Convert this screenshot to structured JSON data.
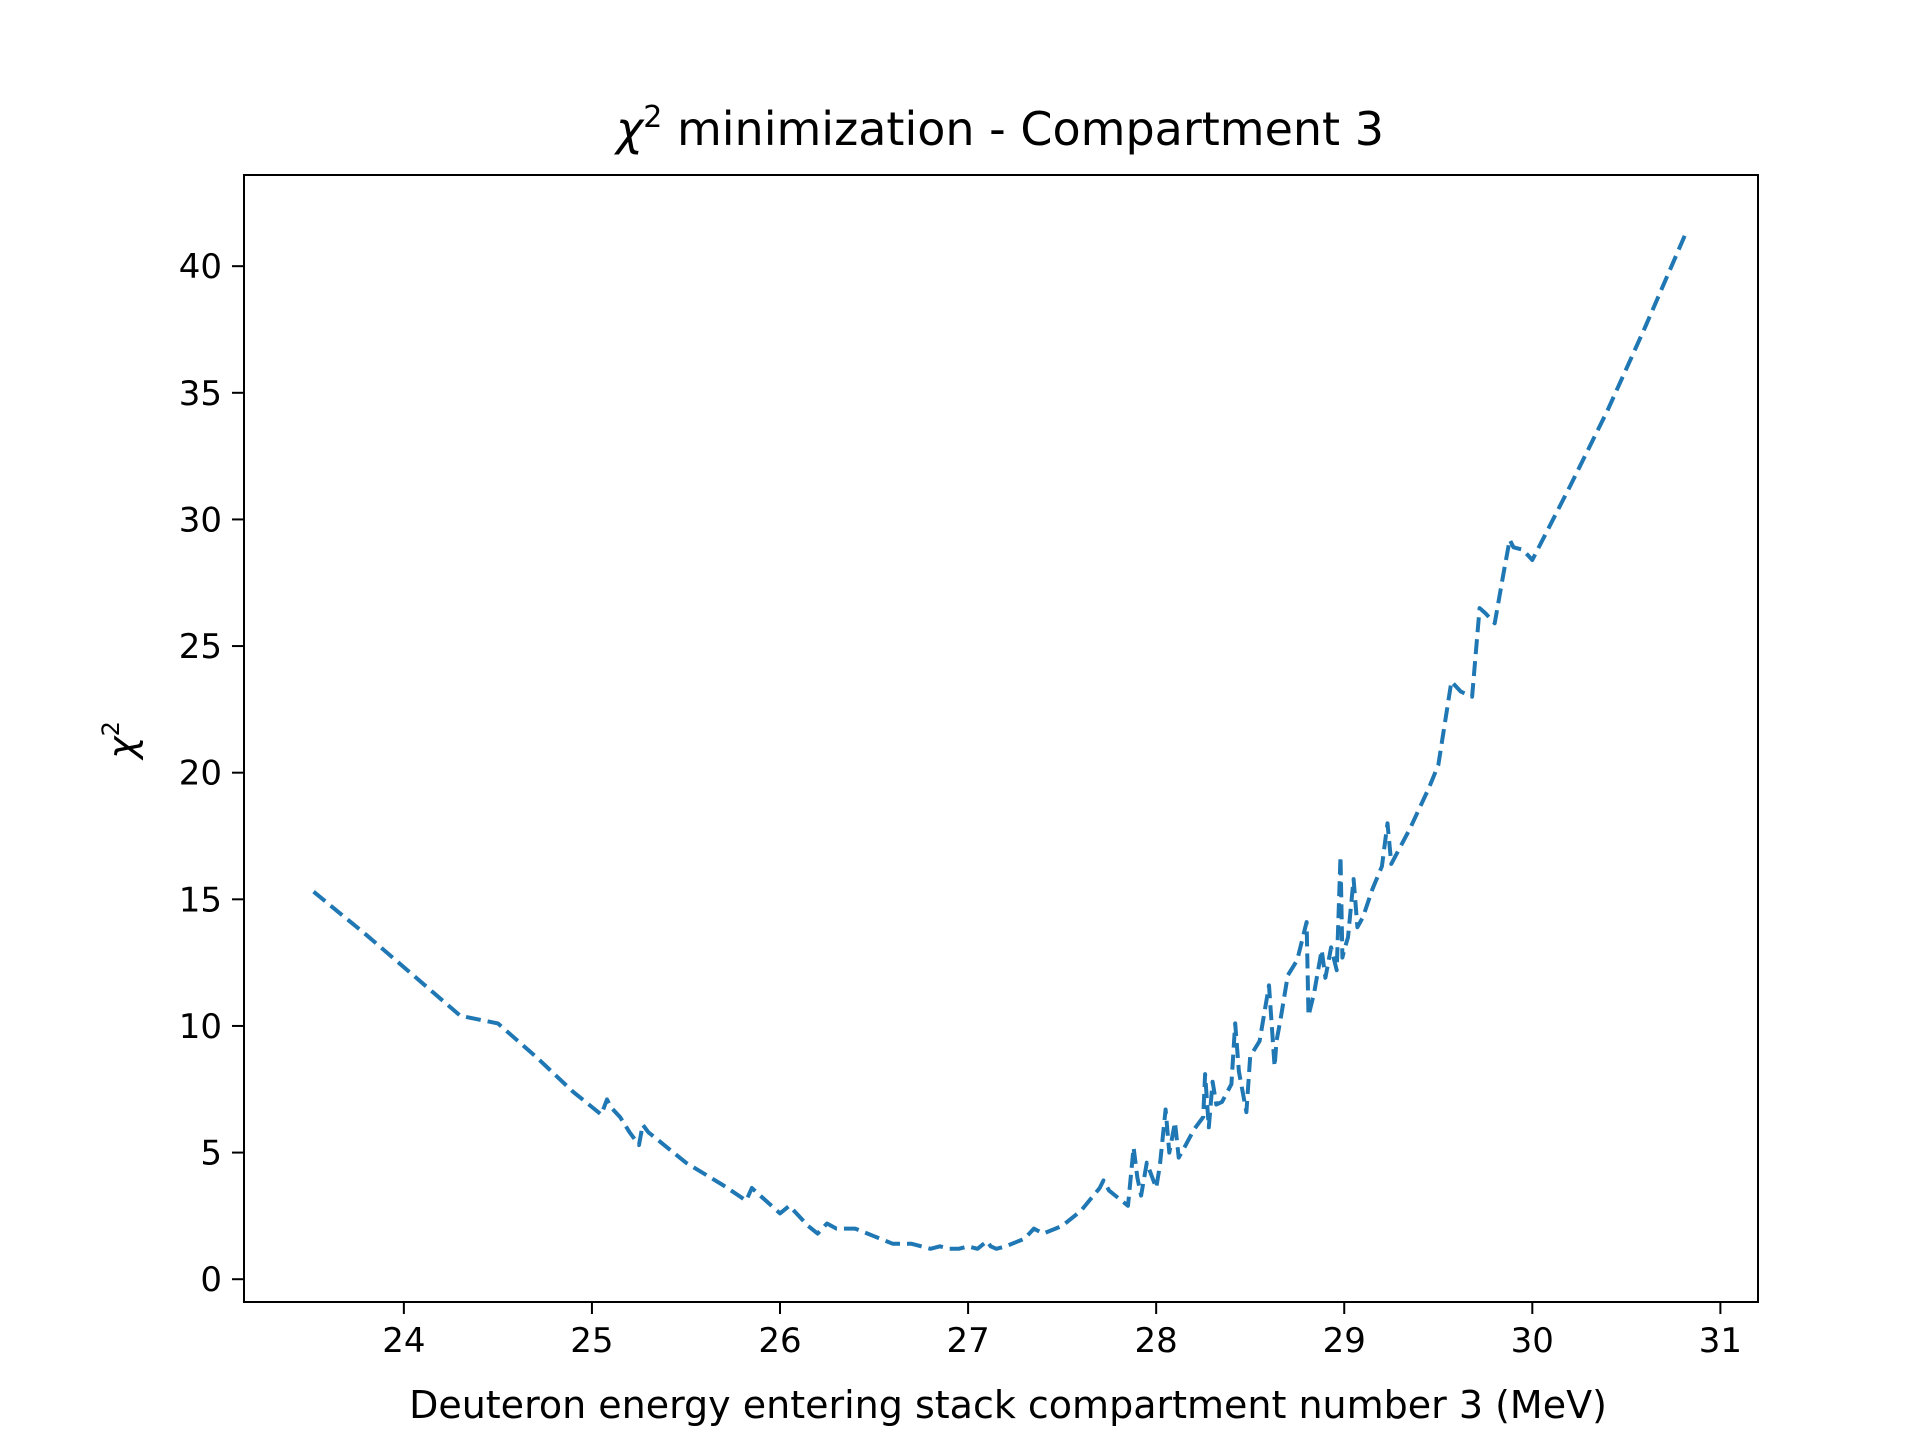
{
  "chart_data": {
    "type": "line",
    "title_prefix": "χ",
    "title_sup": "2",
    "title_suffix": " minimization - Compartment 3",
    "xlabel": "Deuteron energy entering stack compartment number 3 (MeV)",
    "ylabel_base": "χ",
    "ylabel_sup": "2",
    "xlim": [
      23.15,
      31.2
    ],
    "ylim": [
      -0.9,
      43.6
    ],
    "xticks": [
      24,
      25,
      26,
      27,
      28,
      29,
      30,
      31
    ],
    "yticks": [
      0,
      5,
      10,
      15,
      20,
      25,
      30,
      35,
      40
    ],
    "grid": false,
    "series": [
      {
        "color": "#1f77b4",
        "dash": "dashed",
        "x": [
          23.52,
          23.8,
          24.05,
          24.3,
          24.5,
          24.7,
          24.9,
          25.0,
          25.05,
          25.08,
          25.1,
          25.15,
          25.2,
          25.25,
          25.27,
          25.3,
          25.5,
          25.7,
          25.82,
          25.85,
          25.88,
          26.0,
          26.05,
          26.15,
          26.2,
          26.25,
          26.3,
          26.35,
          26.4,
          26.5,
          26.6,
          26.7,
          26.8,
          26.85,
          26.9,
          26.95,
          27.0,
          27.05,
          27.1,
          27.12,
          27.15,
          27.2,
          27.3,
          27.35,
          27.4,
          27.5,
          27.6,
          27.7,
          27.72,
          27.75,
          27.8,
          27.85,
          27.88,
          27.9,
          27.92,
          27.95,
          28.0,
          28.02,
          28.05,
          28.07,
          28.1,
          28.12,
          28.15,
          28.2,
          28.25,
          28.26,
          28.28,
          28.3,
          28.32,
          28.35,
          28.4,
          28.42,
          28.44,
          28.48,
          28.5,
          28.55,
          28.6,
          28.63,
          28.64,
          28.66,
          28.7,
          28.75,
          28.8,
          28.81,
          28.84,
          28.88,
          28.9,
          28.93,
          28.96,
          28.98,
          28.99,
          29.0,
          29.02,
          29.05,
          29.07,
          29.1,
          29.15,
          29.2,
          29.23,
          29.25,
          29.35,
          29.45,
          29.5,
          29.57,
          29.62,
          29.68,
          29.72,
          29.75,
          29.8,
          29.85,
          29.88,
          29.9,
          29.95,
          30.0,
          30.2,
          30.4,
          30.6,
          30.81
        ],
        "y": [
          15.3,
          13.6,
          12.0,
          10.4,
          10.1,
          8.8,
          7.4,
          6.8,
          6.5,
          7.1,
          6.8,
          6.4,
          5.8,
          5.3,
          6.1,
          5.8,
          4.6,
          3.7,
          3.1,
          3.6,
          3.4,
          2.6,
          2.9,
          2.1,
          1.8,
          2.2,
          2.0,
          2.0,
          2.0,
          1.7,
          1.4,
          1.4,
          1.2,
          1.3,
          1.2,
          1.2,
          1.3,
          1.2,
          1.5,
          1.3,
          1.2,
          1.3,
          1.6,
          2.0,
          1.8,
          2.1,
          2.7,
          3.6,
          3.9,
          3.5,
          3.2,
          2.9,
          5.2,
          4.0,
          3.3,
          4.6,
          3.6,
          4.5,
          6.7,
          5.0,
          6.2,
          4.8,
          5.2,
          5.9,
          6.4,
          8.1,
          6.0,
          7.8,
          6.9,
          7.0,
          7.7,
          10.1,
          8.2,
          6.6,
          8.8,
          9.4,
          11.6,
          8.4,
          9.4,
          10.2,
          12.0,
          12.6,
          14.1,
          10.4,
          11.3,
          13.0,
          11.9,
          13.1,
          12.2,
          16.7,
          12.7,
          13.0,
          13.5,
          15.8,
          13.9,
          14.3,
          15.4,
          16.3,
          18.0,
          16.4,
          17.8,
          19.4,
          20.3,
          23.6,
          23.2,
          23.0,
          26.5,
          26.3,
          25.9,
          28.0,
          29.2,
          28.9,
          28.8,
          28.4,
          31.3,
          34.3,
          37.6,
          41.2
        ]
      }
    ]
  }
}
